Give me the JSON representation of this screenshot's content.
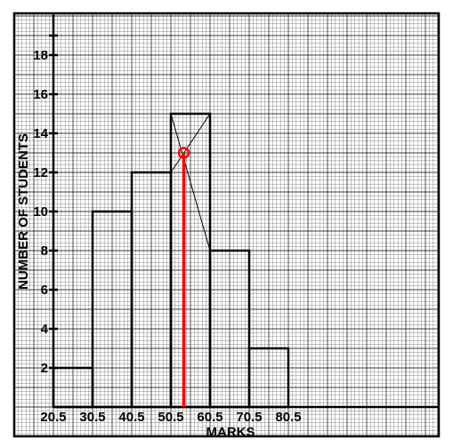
{
  "chart_data": {
    "type": "bar",
    "title": "",
    "xlabel": "MARKS",
    "ylabel": "NUMBER OF STUDENTS",
    "x_ticks": [
      "20.5",
      "30.5",
      "40.5",
      "50.5",
      "60.5",
      "70.5",
      "80.5"
    ],
    "y_ticks": [
      2,
      4,
      6,
      8,
      10,
      12,
      14,
      16,
      18
    ],
    "ylim": [
      0,
      20
    ],
    "xlim": [
      20.5,
      80.5
    ],
    "bins": [
      {
        "start": 20.5,
        "end": 30.5,
        "value": 2
      },
      {
        "start": 30.5,
        "end": 40.5,
        "value": 10
      },
      {
        "start": 40.5,
        "end": 50.5,
        "value": 12
      },
      {
        "start": 50.5,
        "end": 60.5,
        "value": 15
      },
      {
        "start": 60.5,
        "end": 70.5,
        "value": 8
      },
      {
        "start": 70.5,
        "end": 80.5,
        "value": 3
      }
    ],
    "mode_estimate": {
      "x": 53.8,
      "y": 13
    },
    "grid": true,
    "colors": {
      "bars": "#000000",
      "grid": "#000000",
      "mode_line": "#ff0000",
      "mode_marker": "#ff0000"
    }
  }
}
